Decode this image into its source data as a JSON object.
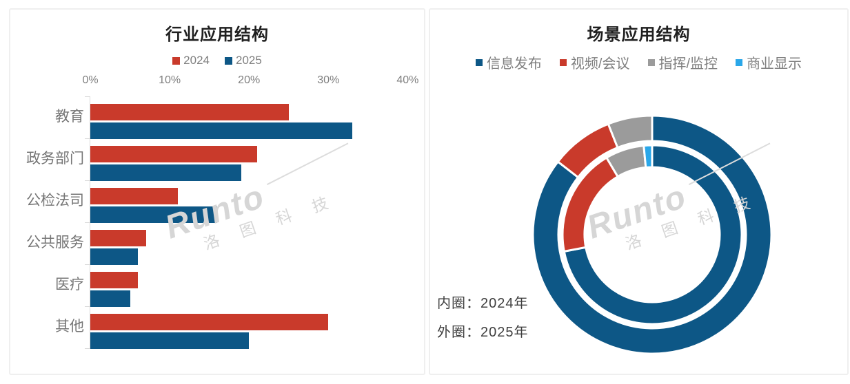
{
  "page": {
    "background": "#FFFFFF"
  },
  "watermark": {
    "brand": "Runto",
    "company": "洛 图 科 技"
  },
  "left_panel": {
    "title": "行业应用结构",
    "legend": [
      {
        "label": "2024",
        "color": "#C93A2B"
      },
      {
        "label": "2025",
        "color": "#0D5786"
      }
    ]
  },
  "right_panel": {
    "title": "场景应用结构",
    "legend": [
      {
        "label": "信息发布",
        "color": "#0D5786"
      },
      {
        "label": "视频/会议",
        "color": "#C93A2B"
      },
      {
        "label": "指挥/监控",
        "color": "#9B9B9B"
      },
      {
        "label": "商业显示",
        "color": "#2AA7E9"
      }
    ],
    "ring_notes": [
      {
        "text": "内圈：2024年"
      },
      {
        "text": "外圈：2025年"
      }
    ]
  },
  "chart_data": [
    {
      "type": "bar",
      "orientation": "horizontal",
      "title": "行业应用结构",
      "categories": [
        "教育",
        "政务部门",
        "公检法司",
        "公共服务",
        "医疗",
        "其他"
      ],
      "series": [
        {
          "name": "2024",
          "color": "#C93A2B",
          "values": [
            25,
            21,
            11,
            7,
            6,
            30
          ]
        },
        {
          "name": "2025",
          "color": "#0D5786",
          "values": [
            33,
            19,
            16,
            6,
            5,
            20
          ]
        }
      ],
      "x_ticks": [
        "0%",
        "10%",
        "20%",
        "30%",
        "40%"
      ],
      "xlim": [
        0,
        40
      ],
      "unit": "%",
      "grid": false,
      "legend_position": "top"
    },
    {
      "type": "doughnut",
      "title": "场景应用结构",
      "categories": [
        "信息发布",
        "视频/会议",
        "指挥/监控",
        "商业显示"
      ],
      "colors": [
        "#0D5786",
        "#C93A2B",
        "#9B9B9B",
        "#2AA7E9"
      ],
      "rings": [
        {
          "name": "2024",
          "position": "inner",
          "values": [
            72,
            19.5,
            7,
            1.5
          ]
        },
        {
          "name": "2025",
          "position": "outer",
          "values": [
            85.5,
            8.5,
            6,
            0
          ]
        }
      ],
      "start_angle_deg": 0,
      "direction": "clockwise",
      "unit": "%",
      "legend_position": "top"
    }
  ]
}
